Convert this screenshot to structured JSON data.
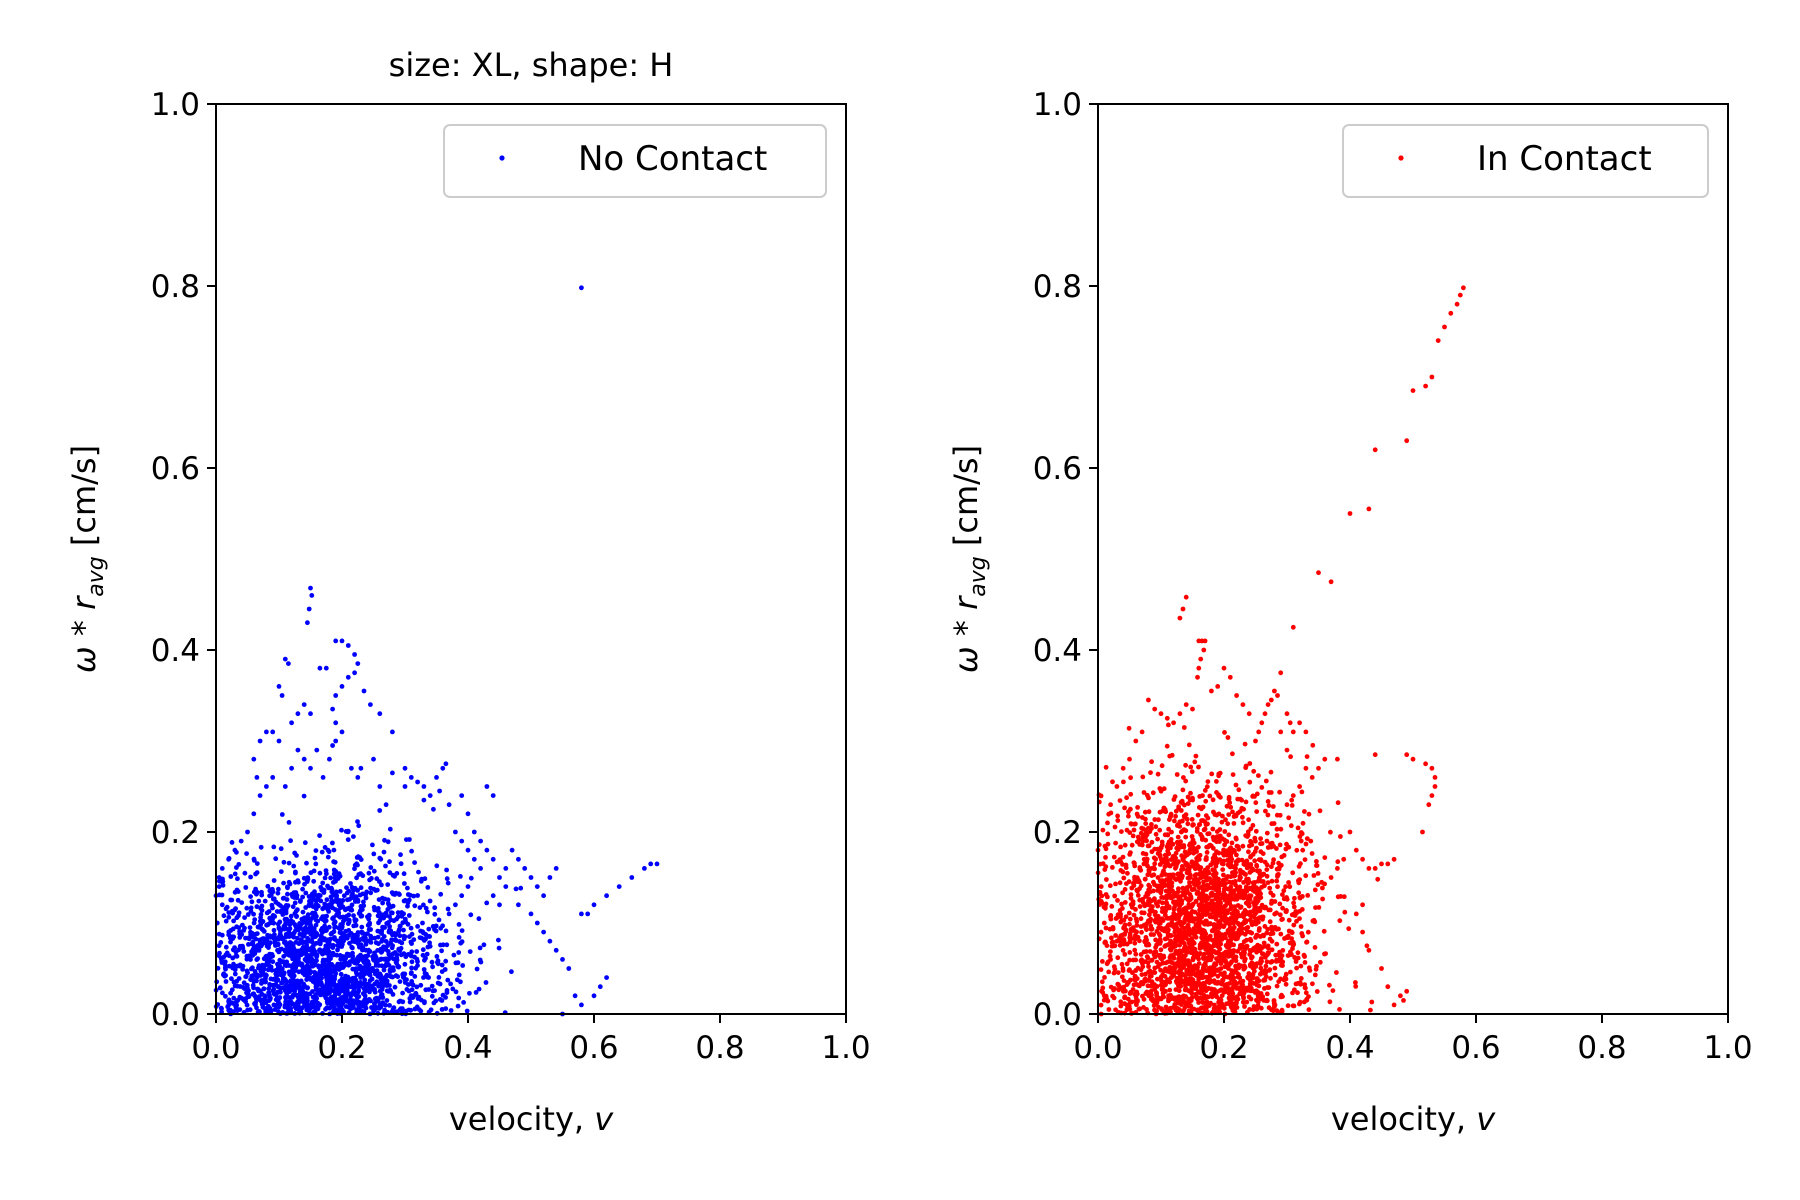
{
  "chart_data": [
    {
      "type": "scatter",
      "title": "size: XL,  shape: H",
      "xlabel": "velocity, v",
      "ylabel": "ω * r_avg [cm/s]",
      "xlim": [
        0.0,
        1.0
      ],
      "ylim": [
        0.0,
        1.0
      ],
      "xticks": [
        "0.0",
        "0.2",
        "0.4",
        "0.6",
        "0.8",
        "1.0"
      ],
      "yticks": [
        "0.0",
        "0.2",
        "0.4",
        "0.6",
        "0.8",
        "1.0"
      ],
      "grid": false,
      "legend_position": "top-right",
      "series": [
        {
          "name": "No Contact",
          "color": "#0000ff",
          "cluster": {
            "center": [
              0.17,
              0.06
            ],
            "spread": [
              0.1,
              0.055
            ],
            "count": 2200,
            "xmax": 0.63,
            "ymax": 0.3
          },
          "points": [
            [
              0.58,
              0.798
            ],
            [
              0.15,
              0.468
            ],
            [
              0.152,
              0.46
            ],
            [
              0.148,
              0.445
            ],
            [
              0.145,
              0.43
            ],
            [
              0.11,
              0.39
            ],
            [
              0.115,
              0.385
            ],
            [
              0.1,
              0.36
            ],
            [
              0.105,
              0.35
            ],
            [
              0.19,
              0.41
            ],
            [
              0.2,
              0.41
            ],
            [
              0.21,
              0.405
            ],
            [
              0.22,
              0.395
            ],
            [
              0.225,
              0.385
            ],
            [
              0.22,
              0.375
            ],
            [
              0.21,
              0.37
            ],
            [
              0.2,
              0.36
            ],
            [
              0.19,
              0.35
            ],
            [
              0.185,
              0.335
            ],
            [
              0.19,
              0.32
            ],
            [
              0.2,
              0.31
            ],
            [
              0.165,
              0.38
            ],
            [
              0.175,
              0.38
            ],
            [
              0.235,
              0.355
            ],
            [
              0.26,
              0.33
            ],
            [
              0.28,
              0.31
            ],
            [
              0.245,
              0.34
            ],
            [
              0.07,
              0.3
            ],
            [
              0.08,
              0.31
            ],
            [
              0.09,
              0.31
            ],
            [
              0.1,
              0.3
            ],
            [
              0.12,
              0.32
            ],
            [
              0.13,
              0.33
            ],
            [
              0.14,
              0.34
            ],
            [
              0.15,
              0.33
            ],
            [
              0.06,
              0.28
            ],
            [
              0.065,
              0.26
            ],
            [
              0.215,
              0.27
            ],
            [
              0.225,
              0.26
            ],
            [
              0.23,
              0.27
            ],
            [
              0.3,
              0.25
            ],
            [
              0.31,
              0.26
            ],
            [
              0.32,
              0.255
            ],
            [
              0.33,
              0.25
            ],
            [
              0.34,
              0.24
            ],
            [
              0.35,
              0.26
            ],
            [
              0.36,
              0.27
            ],
            [
              0.365,
              0.275
            ],
            [
              0.3,
              0.27
            ],
            [
              0.28,
              0.265
            ],
            [
              0.39,
              0.24
            ],
            [
              0.4,
              0.22
            ],
            [
              0.43,
              0.25
            ],
            [
              0.44,
              0.24
            ],
            [
              0.37,
              0.23
            ],
            [
              0.33,
              0.235
            ],
            [
              0.355,
              0.245
            ],
            [
              0.345,
              0.225
            ],
            [
              0.25,
              0.28
            ],
            [
              0.26,
              0.25
            ],
            [
              0.27,
              0.23
            ],
            [
              0.47,
              0.18
            ],
            [
              0.48,
              0.17
            ],
            [
              0.49,
              0.16
            ],
            [
              0.5,
              0.15
            ],
            [
              0.51,
              0.14
            ],
            [
              0.52,
              0.13
            ],
            [
              0.53,
              0.15
            ],
            [
              0.54,
              0.16
            ],
            [
              0.45,
              0.15
            ],
            [
              0.46,
              0.14
            ],
            [
              0.44,
              0.13
            ],
            [
              0.45,
              0.12
            ],
            [
              0.5,
              0.11
            ],
            [
              0.51,
              0.1
            ],
            [
              0.52,
              0.09
            ],
            [
              0.53,
              0.08
            ],
            [
              0.54,
              0.07
            ],
            [
              0.55,
              0.06
            ],
            [
              0.56,
              0.05
            ],
            [
              0.58,
              0.11
            ],
            [
              0.59,
              0.11
            ],
            [
              0.6,
              0.12
            ],
            [
              0.62,
              0.13
            ],
            [
              0.64,
              0.14
            ],
            [
              0.66,
              0.15
            ],
            [
              0.68,
              0.16
            ],
            [
              0.69,
              0.165
            ],
            [
              0.7,
              0.165
            ],
            [
              0.57,
              0.02
            ],
            [
              0.58,
              0.01
            ],
            [
              0.6,
              0.02
            ],
            [
              0.61,
              0.03
            ],
            [
              0.62,
              0.04
            ],
            [
              0.55,
              0.0
            ],
            [
              0.42,
              0.19
            ],
            [
              0.43,
              0.18
            ],
            [
              0.41,
              0.2
            ],
            [
              0.44,
              0.17
            ],
            [
              0.46,
              0.16
            ],
            [
              0.48,
              0.12
            ],
            [
              0.0,
              0.13
            ],
            [
              0.005,
              0.14
            ],
            [
              0.01,
              0.12
            ],
            [
              0.002,
              0.1
            ],
            [
              0.005,
              0.15
            ],
            [
              0.01,
              0.16
            ],
            [
              0.02,
              0.17
            ],
            [
              0.03,
              0.18
            ],
            [
              0.04,
              0.19
            ],
            [
              0.05,
              0.2
            ],
            [
              0.06,
              0.22
            ],
            [
              0.07,
              0.24
            ],
            [
              0.08,
              0.25
            ],
            [
              0.09,
              0.26
            ],
            [
              0.17,
              0.26
            ],
            [
              0.18,
              0.28
            ],
            [
              0.185,
              0.295
            ],
            [
              0.19,
              0.3
            ],
            [
              0.16,
              0.29
            ],
            [
              0.15,
              0.27
            ],
            [
              0.14,
              0.28
            ],
            [
              0.13,
              0.29
            ],
            [
              0.12,
              0.27
            ],
            [
              0.11,
              0.25
            ],
            [
              0.38,
              0.2
            ],
            [
              0.39,
              0.19
            ],
            [
              0.4,
              0.18
            ],
            [
              0.41,
              0.17
            ],
            [
              0.42,
              0.16
            ],
            [
              0.4,
              0.14
            ],
            [
              0.39,
              0.13
            ],
            [
              0.38,
              0.12
            ],
            [
              0.37,
              0.11
            ]
          ]
        }
      ]
    },
    {
      "type": "scatter",
      "xlabel": "velocity, v",
      "ylabel": "ω * r_avg [cm/s]",
      "xlim": [
        0.0,
        1.0
      ],
      "ylim": [
        0.0,
        1.0
      ],
      "xticks": [
        "0.0",
        "0.2",
        "0.4",
        "0.6",
        "0.8",
        "1.0"
      ],
      "yticks": [
        "0.0",
        "0.2",
        "0.4",
        "0.6",
        "0.8",
        "1.0"
      ],
      "grid": false,
      "legend_position": "top-right",
      "series": [
        {
          "name": "In Contact",
          "color": "#ff0000",
          "cluster": {
            "center": [
              0.16,
              0.1
            ],
            "spread": [
              0.085,
              0.075
            ],
            "count": 2800,
            "xmax": 0.47,
            "ymax": 0.33
          },
          "points": [
            [
              0.58,
              0.798
            ],
            [
              0.575,
              0.79
            ],
            [
              0.57,
              0.78
            ],
            [
              0.56,
              0.77
            ],
            [
              0.55,
              0.755
            ],
            [
              0.54,
              0.74
            ],
            [
              0.53,
              0.7
            ],
            [
              0.52,
              0.69
            ],
            [
              0.5,
              0.685
            ],
            [
              0.49,
              0.63
            ],
            [
              0.44,
              0.62
            ],
            [
              0.4,
              0.55
            ],
            [
              0.43,
              0.555
            ],
            [
              0.35,
              0.485
            ],
            [
              0.37,
              0.475
            ],
            [
              0.14,
              0.458
            ],
            [
              0.135,
              0.445
            ],
            [
              0.13,
              0.435
            ],
            [
              0.16,
              0.41
            ],
            [
              0.165,
              0.41
            ],
            [
              0.17,
              0.41
            ],
            [
              0.168,
              0.4
            ],
            [
              0.163,
              0.39
            ],
            [
              0.16,
              0.38
            ],
            [
              0.158,
              0.37
            ],
            [
              0.31,
              0.425
            ],
            [
              0.29,
              0.375
            ],
            [
              0.28,
              0.355
            ],
            [
              0.285,
              0.35
            ],
            [
              0.275,
              0.345
            ],
            [
              0.27,
              0.34
            ],
            [
              0.265,
              0.33
            ],
            [
              0.26,
              0.32
            ],
            [
              0.255,
              0.31
            ],
            [
              0.25,
              0.3
            ],
            [
              0.3,
              0.33
            ],
            [
              0.305,
              0.32
            ],
            [
              0.31,
              0.31
            ],
            [
              0.32,
              0.32
            ],
            [
              0.33,
              0.31
            ],
            [
              0.3,
              0.29
            ],
            [
              0.29,
              0.31
            ],
            [
              0.08,
              0.345
            ],
            [
              0.09,
              0.335
            ],
            [
              0.1,
              0.33
            ],
            [
              0.11,
              0.325
            ],
            [
              0.12,
              0.32
            ],
            [
              0.13,
              0.33
            ],
            [
              0.14,
              0.34
            ],
            [
              0.15,
              0.335
            ],
            [
              0.07,
              0.31
            ],
            [
              0.06,
              0.3
            ],
            [
              0.05,
              0.28
            ],
            [
              0.04,
              0.27
            ],
            [
              0.03,
              0.25
            ],
            [
              0.02,
              0.23
            ],
            [
              0.015,
              0.21
            ],
            [
              0.36,
              0.28
            ],
            [
              0.38,
              0.28
            ],
            [
              0.35,
              0.27
            ],
            [
              0.34,
              0.26
            ],
            [
              0.33,
              0.27
            ],
            [
              0.32,
              0.25
            ],
            [
              0.31,
              0.24
            ],
            [
              0.3,
              0.23
            ],
            [
              0.44,
              0.285
            ],
            [
              0.49,
              0.285
            ],
            [
              0.5,
              0.28
            ],
            [
              0.52,
              0.275
            ],
            [
              0.53,
              0.27
            ],
            [
              0.535,
              0.26
            ],
            [
              0.535,
              0.25
            ],
            [
              0.53,
              0.24
            ],
            [
              0.525,
              0.23
            ],
            [
              0.515,
              0.2
            ],
            [
              0.4,
              0.2
            ],
            [
              0.41,
              0.18
            ],
            [
              0.42,
              0.17
            ],
            [
              0.43,
              0.16
            ],
            [
              0.44,
              0.16
            ],
            [
              0.45,
              0.165
            ],
            [
              0.46,
              0.165
            ],
            [
              0.47,
              0.17
            ],
            [
              0.48,
              0.02
            ],
            [
              0.49,
              0.025
            ],
            [
              0.485,
              0.015
            ],
            [
              0.47,
              0.01
            ],
            [
              0.46,
              0.03
            ],
            [
              0.45,
              0.05
            ],
            [
              0.43,
              0.07
            ],
            [
              0.42,
              0.09
            ],
            [
              0.41,
              0.11
            ],
            [
              0.37,
              0.15
            ],
            [
              0.38,
              0.16
            ],
            [
              0.39,
              0.17
            ],
            [
              0.42,
              0.12
            ],
            [
              0.005,
              0.0
            ],
            [
              0.01,
              0.02
            ],
            [
              0.02,
              0.06
            ],
            [
              0.03,
              0.08
            ],
            [
              0.01,
              0.1
            ],
            [
              0.005,
              0.14
            ],
            [
              0.0,
              0.18
            ],
            [
              0.2,
              0.38
            ],
            [
              0.21,
              0.37
            ],
            [
              0.22,
              0.35
            ],
            [
              0.19,
              0.36
            ],
            [
              0.18,
              0.355
            ],
            [
              0.23,
              0.34
            ],
            [
              0.24,
              0.33
            ]
          ]
        }
      ]
    }
  ]
}
